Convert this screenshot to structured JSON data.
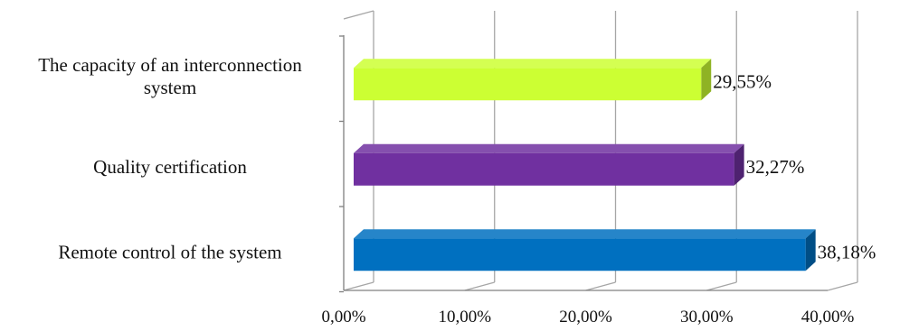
{
  "chart_data": {
    "type": "bar",
    "orientation": "horizontal",
    "style": "3d",
    "categories": [
      "The capacity of an interconnection system",
      "Quality certification",
      "Remote control of the system"
    ],
    "category_lines": [
      [
        "The capacity of an interconnection",
        "system"
      ],
      [
        "Quality certification"
      ],
      [
        "Remote control of the system"
      ]
    ],
    "values": [
      29.55,
      32.27,
      38.18
    ],
    "value_labels": [
      "29,55%",
      "32,27%",
      "38,18%"
    ],
    "xlim": [
      0,
      40
    ],
    "xticks": [
      0,
      10,
      20,
      30,
      40
    ],
    "xtick_labels": [
      "0,00%",
      "10,00%",
      "20,00%",
      "30,00%",
      "40,00%"
    ],
    "grid": true,
    "legend": "none",
    "colors": {
      "The capacity of an interconnection system": "#ccff33",
      "Quality certification": "#7030a0",
      "Remote control of the system": "#0070c0"
    }
  }
}
